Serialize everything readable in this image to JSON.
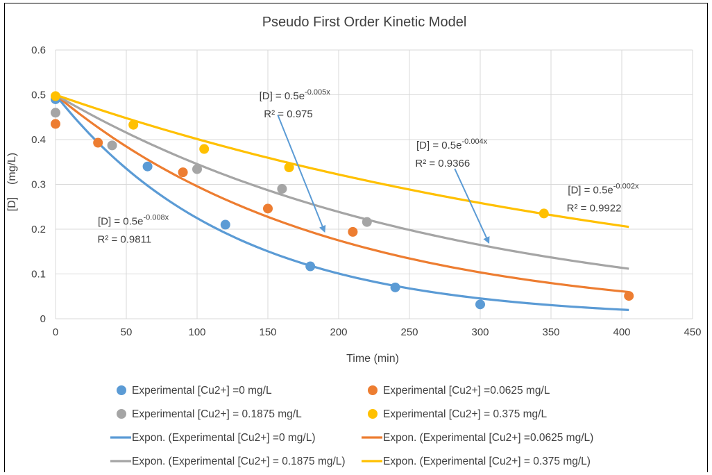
{
  "chart_data": {
    "type": "scatter",
    "title": "Pseudo First Order Kinetic Model",
    "xlabel": "Time (min)",
    "ylabel": "[D]    (mg/L)",
    "xlim": [
      0,
      450
    ],
    "ylim": [
      0,
      0.6
    ],
    "x_ticks": [
      0,
      50,
      100,
      150,
      200,
      250,
      300,
      350,
      400,
      450
    ],
    "y_ticks": [
      0,
      0.1,
      0.2,
      0.3,
      0.4,
      0.5,
      0.6
    ],
    "grid": true,
    "legend_position": "bottom",
    "series": [
      {
        "name": "Experimental [Cu2+] =0 mg/L",
        "marker_color": "#5b9bd5",
        "points": [
          [
            0,
            0.49
          ],
          [
            65,
            0.34
          ],
          [
            120,
            0.21
          ],
          [
            180,
            0.117
          ],
          [
            240,
            0.07
          ],
          [
            300,
            0.032
          ]
        ],
        "fit_name": "Expon. (Experimental [Cu2+] =0 mg/L)",
        "fit": {
          "a": 0.5,
          "b": -0.008,
          "x_range": [
            0,
            405
          ]
        },
        "equation": "[D] = 0.5e",
        "exponent": "-0.008x",
        "r2": "R² = 0.9811"
      },
      {
        "name": "Experimental [Cu2+] =0.0625 mg/L",
        "marker_color": "#ed7d31",
        "points": [
          [
            0,
            0.435
          ],
          [
            30,
            0.393
          ],
          [
            90,
            0.327
          ],
          [
            150,
            0.246
          ],
          [
            210,
            0.194
          ],
          [
            405,
            0.051
          ]
        ],
        "fit_name": "Expon. (Experimental [Cu2+] =0.0625 mg/L)",
        "fit": {
          "a": 0.5,
          "b": -0.00525,
          "x_range": [
            0,
            405
          ]
        },
        "equation": "[D] = 0.5e",
        "exponent": "-0.005x",
        "r2": "R² = 0.975"
      },
      {
        "name": "Experimental [Cu2+] = 0.1875 mg/L",
        "marker_color": "#a5a5a5",
        "points": [
          [
            0,
            0.46
          ],
          [
            40,
            0.387
          ],
          [
            100,
            0.334
          ],
          [
            160,
            0.29
          ],
          [
            220,
            0.216
          ]
        ],
        "fit_name": "Expon. (Experimental [Cu2+] = 0.1875 mg/L)",
        "fit": {
          "a": 0.5,
          "b": -0.0037,
          "x_range": [
            0,
            405
          ]
        },
        "equation": "[D] = 0.5e",
        "exponent": "-0.004x",
        "r2": "R² = 0.9366"
      },
      {
        "name": "Experimental [Cu2+] = 0.375 mg/L",
        "marker_color": "#ffc000",
        "points": [
          [
            0,
            0.497
          ],
          [
            55,
            0.433
          ],
          [
            105,
            0.379
          ],
          [
            165,
            0.338
          ],
          [
            345,
            0.235
          ]
        ],
        "fit_name": "Expon. (Experimental [Cu2+] = 0.375 mg/L)",
        "fit": {
          "a": 0.5,
          "b": -0.0022,
          "x_range": [
            0,
            405
          ]
        },
        "equation": "[D] = 0.5e",
        "exponent": "-0.002x",
        "r2": "R² = 0.9922"
      }
    ],
    "colors": {
      "text": "#404040",
      "grid": "#d9d9d9",
      "arrow": "#5b9bd5"
    }
  }
}
